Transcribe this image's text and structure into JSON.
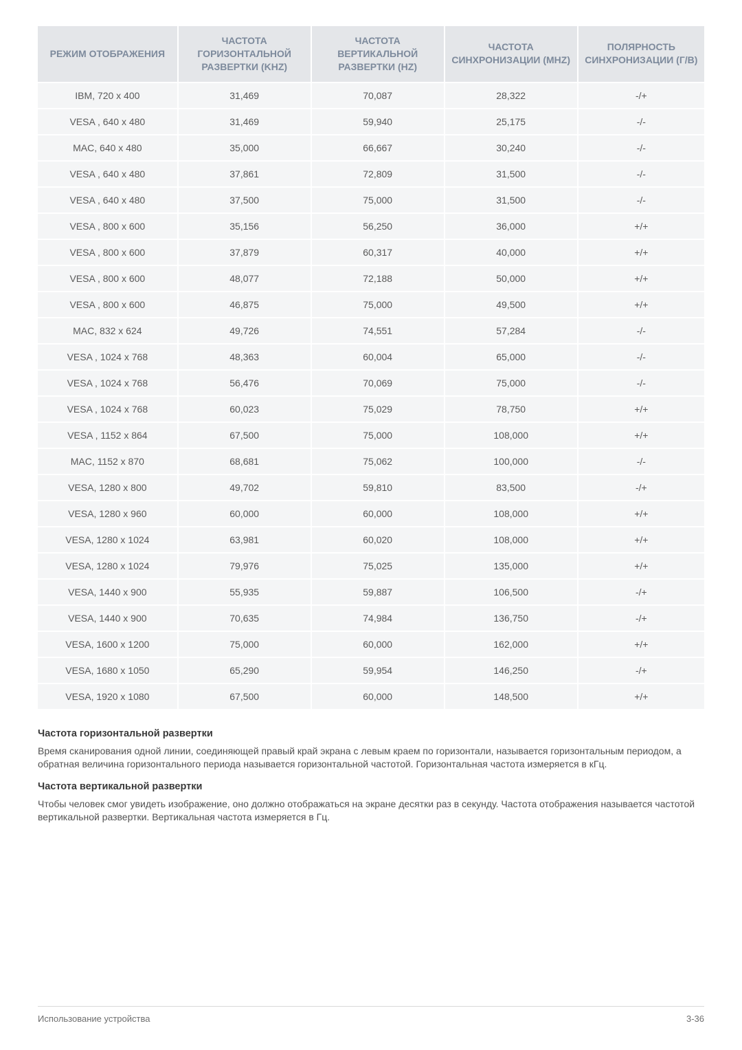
{
  "table": {
    "columns": [
      "РЕЖИМ ОТОБРАЖЕНИЯ",
      "ЧАСТОТА ГОРИЗОНТАЛЬНОЙ РАЗВЕРТКИ (KHZ)",
      "ЧАСТОТА ВЕРТИКАЛЬНОЙ РАЗВЕРТКИ (HZ)",
      "ЧАСТОТА СИНХРОНИЗАЦИИ (MHZ)",
      "ПОЛЯРНОСТЬ СИНХРОНИЗАЦИИ (Г/В)"
    ],
    "col_widths": [
      "21%",
      "20%",
      "20%",
      "20%",
      "19%"
    ],
    "header_bg": "#e4e6e9",
    "header_color": "#7d8a9c",
    "cell_bg": "#f4f5f6",
    "cell_color": "#595959",
    "border_color": "#ffffff",
    "font_size": 14,
    "rows": [
      [
        "IBM, 720 x 400",
        "31,469",
        "70,087",
        "28,322",
        "-/+"
      ],
      [
        "VESA , 640 x 480",
        "31,469",
        "59,940",
        "25,175",
        "-/-"
      ],
      [
        "MAC, 640 x 480",
        "35,000",
        "66,667",
        "30,240",
        "-/-"
      ],
      [
        "VESA , 640 x 480",
        "37,861",
        "72,809",
        "31,500",
        "-/-"
      ],
      [
        "VESA , 640 x 480",
        "37,500",
        "75,000",
        "31,500",
        "-/-"
      ],
      [
        "VESA , 800 x 600",
        "35,156",
        "56,250",
        "36,000",
        "+/+"
      ],
      [
        "VESA , 800 x 600",
        "37,879",
        "60,317",
        "40,000",
        "+/+"
      ],
      [
        "VESA , 800 x 600",
        "48,077",
        "72,188",
        "50,000",
        "+/+"
      ],
      [
        "VESA , 800 x 600",
        "46,875",
        "75,000",
        "49,500",
        "+/+"
      ],
      [
        "MAC, 832 x 624",
        "49,726",
        "74,551",
        "57,284",
        "-/-"
      ],
      [
        "VESA , 1024 x 768",
        "48,363",
        "60,004",
        "65,000",
        "-/-"
      ],
      [
        "VESA , 1024 x 768",
        "56,476",
        "70,069",
        "75,000",
        "-/-"
      ],
      [
        "VESA , 1024 x 768",
        "60,023",
        "75,029",
        "78,750",
        "+/+"
      ],
      [
        "VESA , 1152 x 864",
        "67,500",
        "75,000",
        "108,000",
        "+/+"
      ],
      [
        "MAC, 1152 x 870",
        "68,681",
        "75,062",
        "100,000",
        "-/-"
      ],
      [
        "VESA, 1280 x 800",
        "49,702",
        "59,810",
        "83,500",
        "-/+"
      ],
      [
        "VESA, 1280 x 960",
        "60,000",
        "60,000",
        "108,000",
        "+/+"
      ],
      [
        "VESA, 1280 x 1024",
        "63,981",
        "60,020",
        "108,000",
        "+/+"
      ],
      [
        "VESA, 1280 x 1024",
        "79,976",
        "75,025",
        "135,000",
        "+/+"
      ],
      [
        "VESA, 1440 x 900",
        "55,935",
        "59,887",
        "106,500",
        "-/+"
      ],
      [
        "VESA, 1440 x 900",
        "70,635",
        "74,984",
        "136,750",
        "-/+"
      ],
      [
        "VESA, 1600 x 1200",
        "75,000",
        "60,000",
        "162,000",
        "+/+"
      ],
      [
        "VESA, 1680 x 1050",
        "65,290",
        "59,954",
        "146,250",
        "-/+"
      ],
      [
        "VESA, 1920 x 1080",
        "67,500",
        "60,000",
        "148,500",
        "+/+"
      ]
    ]
  },
  "notes": {
    "h1": "Частота горизонтальной развертки",
    "p1": "Время сканирования одной линии, соединяющей правый край экрана с левым краем по горизонтали, называется горизонтальным периодом, а обратная величина горизонтального периода называется горизонтальной частотой. Горизонтальная частота измеряется в кГц.",
    "h2": "Частота вертикальной развертки",
    "p2": "Чтобы человек смог увидеть изображение, оно должно отображаться на экране десятки раз в секунду. Частота отображения называется частотой вертикальной развертки. Вертикальная частота измеряется в Гц."
  },
  "footer": {
    "left": "Использование устройства",
    "right": "3-36"
  }
}
